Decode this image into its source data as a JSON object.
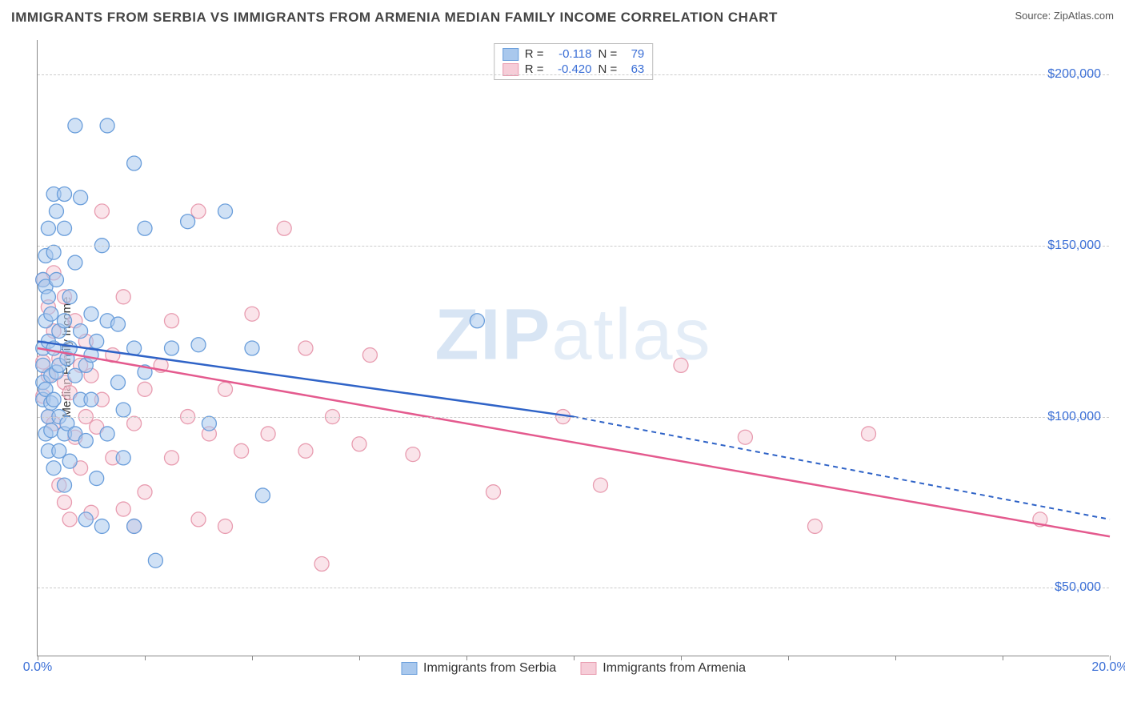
{
  "title": "IMMIGRANTS FROM SERBIA VS IMMIGRANTS FROM ARMENIA MEDIAN FAMILY INCOME CORRELATION CHART",
  "source_label": "Source: ",
  "source_value": "ZipAtlas.com",
  "watermark": {
    "part1": "ZIP",
    "part2": "atlas"
  },
  "chart": {
    "type": "scatter",
    "ylabel": "Median Family Income",
    "xlim": [
      0,
      20
    ],
    "ylim": [
      30000,
      210000
    ],
    "x_ticks": [
      0,
      2,
      4,
      6,
      8,
      10,
      12,
      14,
      16,
      18,
      20
    ],
    "x_tick_labels": {
      "0": "0.0%",
      "20": "20.0%"
    },
    "y_ticks": [
      50000,
      100000,
      150000,
      200000
    ],
    "y_tick_labels": [
      "$50,000",
      "$100,000",
      "$150,000",
      "$200,000"
    ],
    "gridlines_y": [
      50000,
      100000,
      150000,
      200000
    ],
    "background_color": "#ffffff",
    "grid_color": "#cccccc",
    "axis_color": "#888888",
    "tick_label_color": "#3b6fd6",
    "marker_radius": 9,
    "marker_opacity": 0.55,
    "line_width": 2.5,
    "dash_width": 2
  },
  "series": [
    {
      "name": "Immigrants from Serbia",
      "fill_color": "#a9c8ed",
      "stroke_color": "#6a9edb",
      "line_color": "#2f63c7",
      "R": "-0.118",
      "N": "79",
      "trend_solid": [
        [
          0,
          122000
        ],
        [
          10,
          100000
        ]
      ],
      "trend_dashed": [
        [
          10,
          100000
        ],
        [
          20,
          70000
        ]
      ],
      "points": [
        [
          0.1,
          140000
        ],
        [
          0.1,
          120000
        ],
        [
          0.1,
          110000
        ],
        [
          0.1,
          105000
        ],
        [
          0.1,
          115000
        ],
        [
          0.15,
          138000
        ],
        [
          0.15,
          128000
        ],
        [
          0.15,
          108000
        ],
        [
          0.15,
          95000
        ],
        [
          0.15,
          147000
        ],
        [
          0.2,
          135000
        ],
        [
          0.2,
          122000
        ],
        [
          0.2,
          100000
        ],
        [
          0.2,
          90000
        ],
        [
          0.2,
          155000
        ],
        [
          0.25,
          130000
        ],
        [
          0.25,
          112000
        ],
        [
          0.25,
          104000
        ],
        [
          0.25,
          96000
        ],
        [
          0.3,
          165000
        ],
        [
          0.3,
          148000
        ],
        [
          0.3,
          120000
        ],
        [
          0.3,
          105000
        ],
        [
          0.3,
          85000
        ],
        [
          0.35,
          160000
        ],
        [
          0.35,
          140000
        ],
        [
          0.35,
          113000
        ],
        [
          0.4,
          125000
        ],
        [
          0.4,
          115000
        ],
        [
          0.4,
          100000
        ],
        [
          0.4,
          90000
        ],
        [
          0.5,
          165000
        ],
        [
          0.5,
          155000
        ],
        [
          0.5,
          128000
        ],
        [
          0.5,
          95000
        ],
        [
          0.5,
          80000
        ],
        [
          0.55,
          117000
        ],
        [
          0.55,
          98000
        ],
        [
          0.6,
          135000
        ],
        [
          0.6,
          120000
        ],
        [
          0.6,
          87000
        ],
        [
          0.7,
          185000
        ],
        [
          0.7,
          145000
        ],
        [
          0.7,
          112000
        ],
        [
          0.7,
          95000
        ],
        [
          0.8,
          164000
        ],
        [
          0.8,
          125000
        ],
        [
          0.8,
          105000
        ],
        [
          0.9,
          115000
        ],
        [
          0.9,
          93000
        ],
        [
          0.9,
          70000
        ],
        [
          1.0,
          130000
        ],
        [
          1.0,
          118000
        ],
        [
          1.0,
          105000
        ],
        [
          1.1,
          122000
        ],
        [
          1.1,
          82000
        ],
        [
          1.2,
          150000
        ],
        [
          1.2,
          68000
        ],
        [
          1.3,
          185000
        ],
        [
          1.3,
          128000
        ],
        [
          1.3,
          95000
        ],
        [
          1.5,
          127000
        ],
        [
          1.5,
          110000
        ],
        [
          1.6,
          102000
        ],
        [
          1.6,
          88000
        ],
        [
          1.8,
          174000
        ],
        [
          1.8,
          120000
        ],
        [
          1.8,
          68000
        ],
        [
          2.0,
          155000
        ],
        [
          2.0,
          113000
        ],
        [
          2.2,
          58000
        ],
        [
          2.5,
          120000
        ],
        [
          2.8,
          157000
        ],
        [
          3.0,
          121000
        ],
        [
          3.2,
          98000
        ],
        [
          3.5,
          160000
        ],
        [
          4.0,
          120000
        ],
        [
          4.2,
          77000
        ],
        [
          8.2,
          128000
        ]
      ]
    },
    {
      "name": "Immigrants from Armenia",
      "fill_color": "#f6cdd8",
      "stroke_color": "#e89cb0",
      "line_color": "#e45a8e",
      "R": "-0.420",
      "N": "63",
      "trend_solid": [
        [
          0,
          120000
        ],
        [
          20,
          65000
        ]
      ],
      "trend_dashed": null,
      "points": [
        [
          0.1,
          140000
        ],
        [
          0.1,
          116000
        ],
        [
          0.1,
          106000
        ],
        [
          0.2,
          132000
        ],
        [
          0.2,
          112000
        ],
        [
          0.2,
          100000
        ],
        [
          0.3,
          142000
        ],
        [
          0.3,
          125000
        ],
        [
          0.3,
          98000
        ],
        [
          0.4,
          117000
        ],
        [
          0.4,
          80000
        ],
        [
          0.5,
          135000
        ],
        [
          0.5,
          110000
        ],
        [
          0.5,
          75000
        ],
        [
          0.6,
          107000
        ],
        [
          0.6,
          70000
        ],
        [
          0.7,
          128000
        ],
        [
          0.7,
          94000
        ],
        [
          0.8,
          115000
        ],
        [
          0.8,
          85000
        ],
        [
          0.9,
          122000
        ],
        [
          0.9,
          100000
        ],
        [
          1.0,
          112000
        ],
        [
          1.0,
          72000
        ],
        [
          1.1,
          97000
        ],
        [
          1.2,
          160000
        ],
        [
          1.2,
          105000
        ],
        [
          1.4,
          118000
        ],
        [
          1.4,
          88000
        ],
        [
          1.6,
          135000
        ],
        [
          1.6,
          73000
        ],
        [
          1.8,
          98000
        ],
        [
          1.8,
          68000
        ],
        [
          2.0,
          108000
        ],
        [
          2.0,
          78000
        ],
        [
          2.3,
          115000
        ],
        [
          2.5,
          88000
        ],
        [
          2.5,
          128000
        ],
        [
          2.8,
          100000
        ],
        [
          3.0,
          160000
        ],
        [
          3.0,
          70000
        ],
        [
          3.2,
          95000
        ],
        [
          3.5,
          108000
        ],
        [
          3.5,
          68000
        ],
        [
          3.8,
          90000
        ],
        [
          4.0,
          130000
        ],
        [
          4.3,
          95000
        ],
        [
          4.6,
          155000
        ],
        [
          5.0,
          120000
        ],
        [
          5.0,
          90000
        ],
        [
          5.3,
          57000
        ],
        [
          5.5,
          100000
        ],
        [
          6.0,
          92000
        ],
        [
          6.2,
          118000
        ],
        [
          7.0,
          89000
        ],
        [
          8.5,
          78000
        ],
        [
          9.8,
          100000
        ],
        [
          10.5,
          80000
        ],
        [
          12.0,
          115000
        ],
        [
          13.2,
          94000
        ],
        [
          14.5,
          68000
        ],
        [
          15.5,
          95000
        ],
        [
          18.7,
          70000
        ]
      ]
    }
  ],
  "legend": {
    "R_label": "R =",
    "N_label": "N ="
  }
}
